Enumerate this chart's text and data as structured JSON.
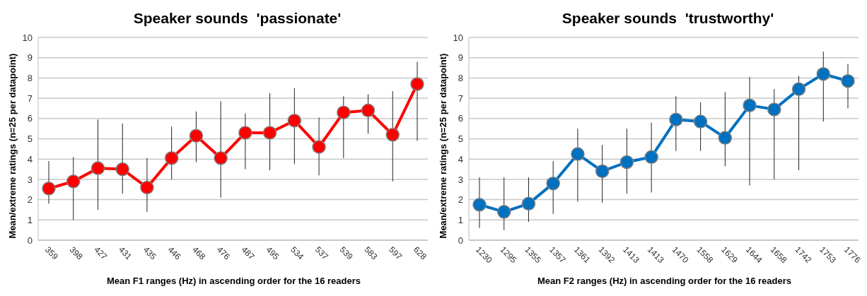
{
  "chart_data": [
    {
      "type": "line",
      "title": "Speaker sounds  'passionate'",
      "xlabel": "Mean F1 ranges (Hz) in ascending order for the 16 readers",
      "ylabel": "Mean/extreme ratings (n=25 per datapoint)",
      "categories": [
        "359",
        "398",
        "427",
        "431",
        "435",
        "446",
        "468",
        "476",
        "487",
        "495",
        "534",
        "537",
        "539",
        "583",
        "597",
        "628"
      ],
      "series": [
        {
          "color": "#ff0000",
          "values": [
            2.55,
            2.9,
            3.55,
            3.5,
            2.6,
            4.05,
            5.15,
            4.05,
            5.3,
            5.3,
            5.9,
            4.6,
            6.3,
            6.4,
            5.2,
            7.7
          ],
          "errors": [
            [
              1.8,
              3.9
            ],
            [
              1.0,
              4.1
            ],
            [
              1.5,
              5.95
            ],
            [
              2.3,
              5.75
            ],
            [
              1.4,
              4.05
            ],
            [
              3.0,
              5.6
            ],
            [
              3.85,
              6.35
            ],
            [
              2.1,
              6.85
            ],
            [
              3.5,
              6.25
            ],
            [
              3.45,
              7.25
            ],
            [
              3.75,
              7.5
            ],
            [
              3.2,
              6.05
            ],
            [
              4.05,
              7.1
            ],
            [
              5.25,
              7.2
            ],
            [
              2.9,
              7.35
            ],
            [
              4.9,
              8.8
            ]
          ]
        }
      ],
      "ylim": [
        0,
        10
      ],
      "yticks": [
        0,
        1,
        2,
        3,
        4,
        5,
        6,
        7,
        8,
        9,
        10
      ],
      "grid": "y",
      "marker": "circle"
    },
    {
      "type": "line",
      "title": "Speaker sounds  'trustworthy'",
      "xlabel": "Mean F2 ranges (Hz) in ascending order for the 16 readers",
      "ylabel": "Mean/extreme ratings (n=25 per datapoint)",
      "categories": [
        "1230",
        "1295",
        "1355",
        "1357",
        "1361",
        "1392",
        "1413",
        "1413",
        "1470",
        "1558",
        "1629",
        "1644",
        "1658",
        "1742",
        "1753",
        "1776"
      ],
      "series": [
        {
          "color": "#0070c0",
          "values": [
            1.75,
            1.4,
            1.8,
            2.8,
            4.25,
            3.4,
            3.85,
            4.1,
            5.95,
            5.85,
            5.05,
            6.65,
            6.45,
            7.45,
            8.2,
            7.85
          ],
          "errors": [
            [
              0.6,
              3.1
            ],
            [
              0.5,
              3.1
            ],
            [
              0.9,
              3.1
            ],
            [
              1.3,
              3.9
            ],
            [
              1.9,
              5.5
            ],
            [
              1.85,
              4.7
            ],
            [
              2.3,
              5.5
            ],
            [
              2.35,
              5.8
            ],
            [
              4.4,
              7.1
            ],
            [
              4.4,
              6.8
            ],
            [
              3.65,
              7.3
            ],
            [
              2.7,
              8.05
            ],
            [
              3.0,
              7.45
            ],
            [
              3.45,
              8.1
            ],
            [
              5.85,
              9.3
            ],
            [
              6.5,
              8.7
            ]
          ]
        }
      ],
      "ylim": [
        0,
        10
      ],
      "yticks": [
        0,
        1,
        2,
        3,
        4,
        5,
        6,
        7,
        8,
        9,
        10
      ],
      "grid": "y",
      "marker": "circle"
    }
  ]
}
